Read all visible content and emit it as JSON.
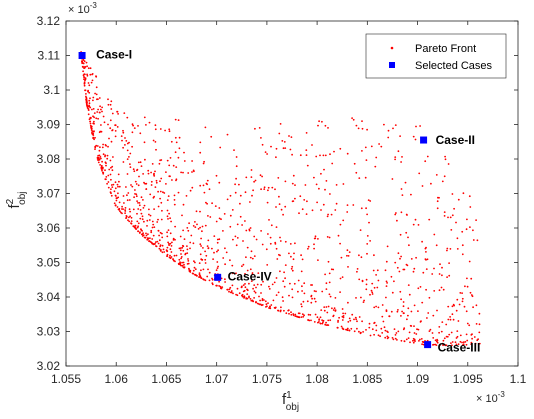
{
  "chart_data": {
    "type": "scatter",
    "xlabel": "f",
    "xlabel_sup": "1",
    "xlabel_sub": "obj",
    "ylabel": "f",
    "ylabel_sup": "2",
    "ylabel_sub": "obj",
    "x_exponent_label": "× 10",
    "x_exponent_power": "-3",
    "y_exponent_label": "× 10",
    "y_exponent_power": "-3",
    "xlim": [
      1.055,
      1.1
    ],
    "ylim": [
      3.02,
      3.12
    ],
    "x_ticks": [
      "1.055",
      "1.06",
      "1.065",
      "1.07",
      "1.075",
      "1.08",
      "1.085",
      "1.09",
      "1.095",
      "1.1"
    ],
    "y_ticks": [
      "3.02",
      "3.03",
      "3.04",
      "3.05",
      "3.06",
      "3.07",
      "3.08",
      "3.09",
      "3.1",
      "3.11",
      "3.12"
    ],
    "grid": false,
    "legend_position": "top-right",
    "series": [
      {
        "name": "Pareto Front",
        "color": "#ff0000",
        "marker": "dot",
        "front_curve_approx": [
          [
            1.0565,
            3.111
          ],
          [
            1.057,
            3.097
          ],
          [
            1.058,
            3.081
          ],
          [
            1.06,
            3.066
          ],
          [
            1.0625,
            3.058
          ],
          [
            1.065,
            3.052
          ],
          [
            1.0675,
            3.047
          ],
          [
            1.07,
            3.043
          ],
          [
            1.075,
            3.037
          ],
          [
            1.08,
            3.0325
          ],
          [
            1.085,
            3.029
          ],
          [
            1.09,
            3.0265
          ],
          [
            1.091,
            3.026
          ]
        ],
        "upper_envelope_approx": [
          [
            1.0565,
            3.111
          ],
          [
            1.06,
            3.095
          ],
          [
            1.07,
            3.09
          ],
          [
            1.08,
            3.091
          ],
          [
            1.09,
            3.094
          ],
          [
            1.092,
            3.085
          ],
          [
            1.094,
            3.075
          ],
          [
            1.096,
            3.07
          ],
          [
            1.0962,
            3.03
          ]
        ],
        "point_count_approx": 1600
      },
      {
        "name": "Selected Cases",
        "color": "#0000ff",
        "marker": "square",
        "points": [
          {
            "label": "Case-I",
            "x": 1.0566,
            "y": 3.11
          },
          {
            "label": "Case-II",
            "x": 1.0906,
            "y": 3.0855
          },
          {
            "label": "Case-III",
            "x": 1.091,
            "y": 3.0262
          },
          {
            "label": "Case-IV",
            "x": 1.0701,
            "y": 3.0457
          }
        ]
      }
    ]
  }
}
